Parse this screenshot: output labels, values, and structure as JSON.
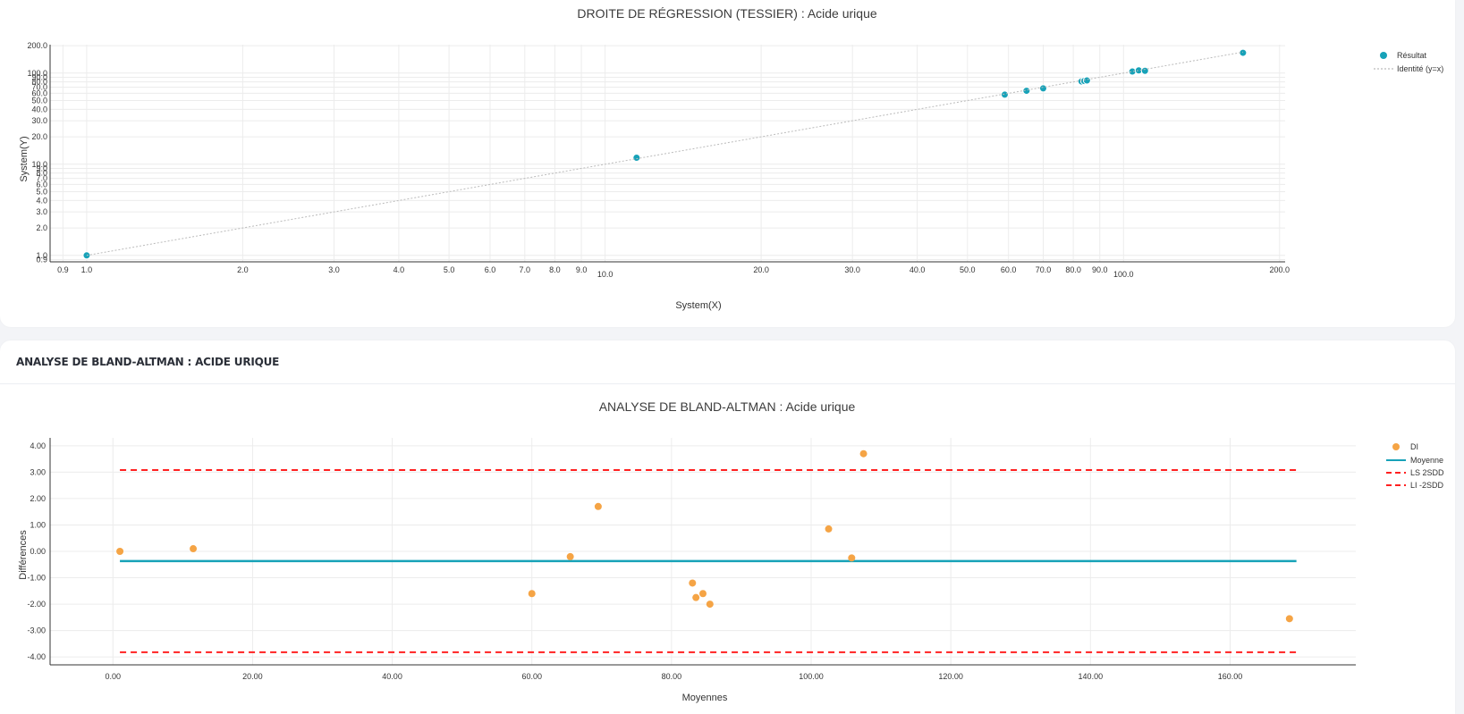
{
  "regression": {
    "title": "DROITE DE RÉGRESSION (TESSIER) : Acide urique",
    "chart_data": {
      "type": "scatter",
      "title": "DROITE DE RÉGRESSION (TESSIER) : Acide urique",
      "xlabel": "System(X)",
      "ylabel": "System(Y)",
      "x_scale": "log",
      "y_scale": "log",
      "xlim": [
        0.85,
        205
      ],
      "ylim": [
        0.85,
        205
      ],
      "grid": true,
      "legend_position": "top-right",
      "x_ticks": [
        "0.9",
        "1.0",
        "2.0",
        "3.0",
        "4.0",
        "5.0",
        "6.0",
        "7.0",
        "8.0",
        "9.0",
        "10.0",
        "20.0",
        "30.0",
        "40.0",
        "50.0",
        "60.0",
        "70.0",
        "80.0",
        "90.0",
        "100.0",
        "200.0"
      ],
      "y_ticks": [
        "0.9",
        "1.0",
        "2.0",
        "3.0",
        "4.0",
        "5.0",
        "6.0",
        "7.0",
        "8.0",
        "9.0",
        "10.0",
        "20.0",
        "30.0",
        "40.0",
        "50.0",
        "60.0",
        "70.0",
        "80.0",
        "90.0",
        "100.0",
        "200.0"
      ],
      "series": [
        {
          "name": "Résultat",
          "kind": "scatter",
          "color": "#17a2b8",
          "x": [
            1.0,
            11.5,
            59,
            65,
            70,
            83,
            84,
            85,
            104,
            107,
            110,
            170
          ],
          "y": [
            1.0,
            11.8,
            58,
            64,
            68,
            81,
            82,
            83,
            104,
            107,
            106,
            167
          ]
        },
        {
          "name": "Identité (y=x)",
          "kind": "line",
          "color": "#bbbbbb",
          "x": [
            1.0,
            170
          ],
          "y": [
            1.0,
            170
          ]
        }
      ]
    }
  },
  "bland_altman": {
    "header": "ANALYSE DE BLAND-ALTMAN : ACIDE URIQUE",
    "title": "ANALYSE DE BLAND-ALTMAN : Acide urique",
    "chart_data": {
      "type": "scatter",
      "title": "ANALYSE DE BLAND-ALTMAN : Acide urique",
      "xlabel": "Moyennes",
      "ylabel": "Différences",
      "xlim": [
        -9,
        178
      ],
      "ylim": [
        -4.3,
        4.3
      ],
      "grid": true,
      "legend_position": "top-right",
      "x_ticks": [
        "0.00",
        "20.00",
        "40.00",
        "60.00",
        "80.00",
        "100.00",
        "120.00",
        "140.00",
        "160.00"
      ],
      "y_ticks": [
        "4.00",
        "3.00",
        "2.00",
        "1.00",
        "0.00",
        "-1.00",
        "-2.00",
        "-3.00",
        "-4.00"
      ],
      "series": [
        {
          "name": "DI",
          "kind": "scatter",
          "color": "#f5a445",
          "x": [
            1.0,
            11.5,
            60,
            65.5,
            69.5,
            83,
            83.5,
            84.5,
            85.5,
            102.5,
            105.8,
            107.5,
            168.5
          ],
          "y": [
            0.0,
            0.1,
            -1.6,
            -0.2,
            1.7,
            -1.2,
            -1.75,
            -1.6,
            -2.0,
            0.85,
            -0.25,
            3.7,
            -2.55
          ]
        },
        {
          "name": "Moyenne",
          "kind": "line",
          "color": "#17a2b8",
          "x": [
            1.0,
            169.5
          ],
          "y": [
            -0.37,
            -0.37
          ]
        },
        {
          "name": "LS 2SDD",
          "kind": "dashed",
          "color": "#ff2020",
          "x": [
            1.0,
            169.5
          ],
          "y": [
            3.08,
            3.08
          ]
        },
        {
          "name": "LI -2SDD",
          "kind": "dashed",
          "color": "#ff2020",
          "x": [
            1.0,
            169.5
          ],
          "y": [
            -3.82,
            -3.82
          ]
        }
      ]
    }
  }
}
